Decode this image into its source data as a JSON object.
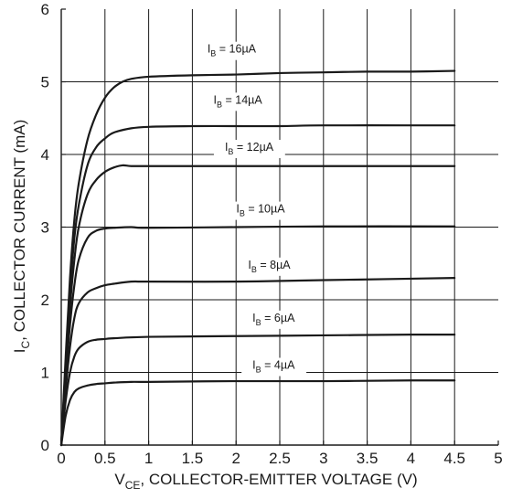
{
  "chart_data": {
    "type": "line",
    "xlim": [
      0,
      5
    ],
    "ylim": [
      0,
      6
    ],
    "x_ticks": [
      "0",
      "0.5",
      "1",
      "1.5",
      "2",
      "2.5",
      "3",
      "3.5",
      "4",
      "4.5",
      "5"
    ],
    "y_ticks": [
      "0",
      "1",
      "2",
      "3",
      "4",
      "5",
      "6"
    ],
    "grid": true,
    "xlabel": {
      "main": "V",
      "sub": "CE",
      "rest": ", COLLECTOR-EMITTER VOLTAGE (V)"
    },
    "ylabel": {
      "main": "I",
      "sub": "C",
      "rest": ", COLLECTOR CURRENT (mA)"
    },
    "series": [
      {
        "name": "IB = 16µA",
        "label_main": "I",
        "label_sub": "B",
        "label_rest": " = 16µA",
        "label_anchor": [
          1.95,
          5.4
        ],
        "points": [
          [
            0,
            0
          ],
          [
            0.05,
            1.2
          ],
          [
            0.1,
            2.3
          ],
          [
            0.15,
            3.1
          ],
          [
            0.2,
            3.6
          ],
          [
            0.3,
            4.2
          ],
          [
            0.4,
            4.55
          ],
          [
            0.5,
            4.78
          ],
          [
            0.6,
            4.92
          ],
          [
            0.7,
            5.0
          ],
          [
            0.8,
            5.04
          ],
          [
            1.0,
            5.07
          ],
          [
            1.5,
            5.09
          ],
          [
            2.0,
            5.1
          ],
          [
            2.5,
            5.12
          ],
          [
            3.0,
            5.13
          ],
          [
            3.5,
            5.14
          ],
          [
            4.0,
            5.14
          ],
          [
            4.5,
            5.15
          ]
        ]
      },
      {
        "name": "IB = 14µA",
        "label_main": "I",
        "label_sub": "B",
        "label_rest": " = 14µA",
        "label_anchor": [
          2.02,
          4.7
        ],
        "points": [
          [
            0,
            0
          ],
          [
            0.05,
            1.1
          ],
          [
            0.1,
            2.1
          ],
          [
            0.15,
            2.85
          ],
          [
            0.2,
            3.3
          ],
          [
            0.3,
            3.85
          ],
          [
            0.4,
            4.1
          ],
          [
            0.5,
            4.22
          ],
          [
            0.6,
            4.3
          ],
          [
            0.8,
            4.36
          ],
          [
            1.0,
            4.38
          ],
          [
            1.5,
            4.39
          ],
          [
            2.0,
            4.39
          ],
          [
            2.5,
            4.39
          ],
          [
            3.0,
            4.4
          ],
          [
            4.0,
            4.4
          ],
          [
            4.5,
            4.4
          ]
        ]
      },
      {
        "name": "IB = 12µA",
        "label_main": "I",
        "label_sub": "B",
        "label_rest": " = 12µA",
        "label_anchor": [
          2.15,
          4.05
        ],
        "points": [
          [
            0,
            0
          ],
          [
            0.05,
            1.0
          ],
          [
            0.1,
            1.9
          ],
          [
            0.15,
            2.55
          ],
          [
            0.2,
            3.0
          ],
          [
            0.3,
            3.45
          ],
          [
            0.4,
            3.65
          ],
          [
            0.5,
            3.76
          ],
          [
            0.6,
            3.82
          ],
          [
            0.7,
            3.85
          ],
          [
            0.8,
            3.84
          ],
          [
            1.0,
            3.84
          ],
          [
            2.0,
            3.84
          ],
          [
            3.0,
            3.84
          ],
          [
            4.5,
            3.84
          ]
        ]
      },
      {
        "name": "IB = 10µA",
        "label_main": "I",
        "label_sub": "B",
        "label_rest": " = 10µA",
        "label_anchor": [
          2.28,
          3.2
        ],
        "points": [
          [
            0,
            0
          ],
          [
            0.05,
            0.9
          ],
          [
            0.1,
            1.65
          ],
          [
            0.15,
            2.2
          ],
          [
            0.2,
            2.55
          ],
          [
            0.3,
            2.85
          ],
          [
            0.4,
            2.95
          ],
          [
            0.5,
            2.98
          ],
          [
            0.6,
            2.99
          ],
          [
            0.8,
            3.0
          ],
          [
            1.0,
            2.99
          ],
          [
            2.0,
            3.0
          ],
          [
            3.0,
            3.01
          ],
          [
            4.5,
            3.01
          ]
        ]
      },
      {
        "name": "IB = 8µA",
        "label_main": "I",
        "label_sub": "B",
        "label_rest": " = 8µA",
        "label_anchor": [
          2.38,
          2.43
        ],
        "points": [
          [
            0,
            0
          ],
          [
            0.05,
            0.75
          ],
          [
            0.1,
            1.35
          ],
          [
            0.15,
            1.75
          ],
          [
            0.2,
            1.95
          ],
          [
            0.3,
            2.1
          ],
          [
            0.4,
            2.16
          ],
          [
            0.5,
            2.2
          ],
          [
            0.6,
            2.22
          ],
          [
            0.8,
            2.25
          ],
          [
            1.0,
            2.25
          ],
          [
            2.0,
            2.25
          ],
          [
            3.0,
            2.27
          ],
          [
            4.0,
            2.29
          ],
          [
            4.5,
            2.3
          ]
        ]
      },
      {
        "name": "IB = 6µA",
        "label_main": "I",
        "label_sub": "B",
        "label_rest": " = 6µA",
        "label_anchor": [
          2.43,
          1.7
        ],
        "points": [
          [
            0,
            0
          ],
          [
            0.05,
            0.6
          ],
          [
            0.1,
            1.0
          ],
          [
            0.15,
            1.22
          ],
          [
            0.2,
            1.33
          ],
          [
            0.3,
            1.42
          ],
          [
            0.4,
            1.45
          ],
          [
            0.5,
            1.46
          ],
          [
            0.6,
            1.47
          ],
          [
            1.0,
            1.49
          ],
          [
            2.0,
            1.5
          ],
          [
            3.0,
            1.51
          ],
          [
            4.0,
            1.52
          ],
          [
            4.5,
            1.52
          ]
        ]
      },
      {
        "name": "IB = 4µA",
        "label_main": "I",
        "label_sub": "B",
        "label_rest": " = 4µA",
        "label_anchor": [
          2.43,
          1.05
        ],
        "points": [
          [
            0,
            0
          ],
          [
            0.05,
            0.4
          ],
          [
            0.1,
            0.62
          ],
          [
            0.15,
            0.73
          ],
          [
            0.2,
            0.78
          ],
          [
            0.3,
            0.82
          ],
          [
            0.4,
            0.84
          ],
          [
            0.5,
            0.85
          ],
          [
            0.6,
            0.86
          ],
          [
            0.8,
            0.87
          ],
          [
            1.0,
            0.87
          ],
          [
            2.0,
            0.88
          ],
          [
            3.0,
            0.88
          ],
          [
            4.0,
            0.89
          ],
          [
            4.5,
            0.89
          ]
        ]
      }
    ]
  }
}
